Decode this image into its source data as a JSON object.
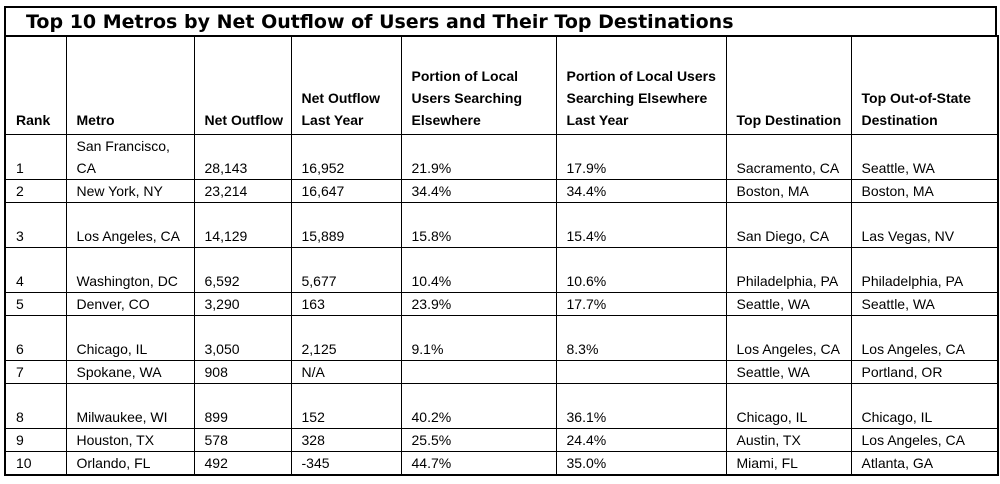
{
  "chart_data": {
    "type": "table",
    "title": "Top 10 Metros by Net Outflow of Users and Their Top Destinations",
    "columns": [
      "Rank",
      "Metro",
      "Net Outflow",
      "Net Outflow Last Year",
      "Portion of Local Users Searching Elsewhere",
      "Portion of Local Users Searching Elsewhere Last Year",
      "Top Destination",
      "Top Out-of-State Destination"
    ],
    "rows": [
      [
        "1",
        "San Francisco, CA",
        "28,143",
        "16,952",
        "21.9%",
        "17.9%",
        "Sacramento, CA",
        "Seattle, WA"
      ],
      [
        "2",
        "New York, NY",
        "23,214",
        "16,647",
        "34.4%",
        "34.4%",
        "Boston, MA",
        "Boston, MA"
      ],
      [
        "3",
        "Los Angeles, CA",
        "14,129",
        "15,889",
        "15.8%",
        "15.4%",
        "San Diego, CA",
        "Las Vegas, NV"
      ],
      [
        "4",
        "Washington, DC",
        "6,592",
        "5,677",
        "10.4%",
        "10.6%",
        "Philadelphia, PA",
        "Philadelphia, PA"
      ],
      [
        "5",
        "Denver, CO",
        "3,290",
        "163",
        "23.9%",
        "17.7%",
        "Seattle, WA",
        "Seattle, WA"
      ],
      [
        "6",
        "Chicago, IL",
        "3,050",
        "2,125",
        "9.1%",
        "8.3%",
        "Los Angeles, CA",
        "Los Angeles, CA"
      ],
      [
        "7",
        "Spokane, WA",
        "908",
        "N/A",
        "",
        "",
        "Seattle, WA",
        "Portland, OR"
      ],
      [
        "8",
        "Milwaukee, WI",
        "899",
        "152",
        "40.2%",
        "36.1%",
        "Chicago, IL",
        "Chicago, IL"
      ],
      [
        "9",
        "Houston, TX",
        "578",
        "328",
        "25.5%",
        "24.4%",
        "Austin, TX",
        "Los Angeles, CA"
      ],
      [
        "10",
        "Orlando, FL",
        "492",
        "-345",
        "44.7%",
        "35.0%",
        "Miami, FL",
        "Atlanta, GA"
      ]
    ]
  }
}
